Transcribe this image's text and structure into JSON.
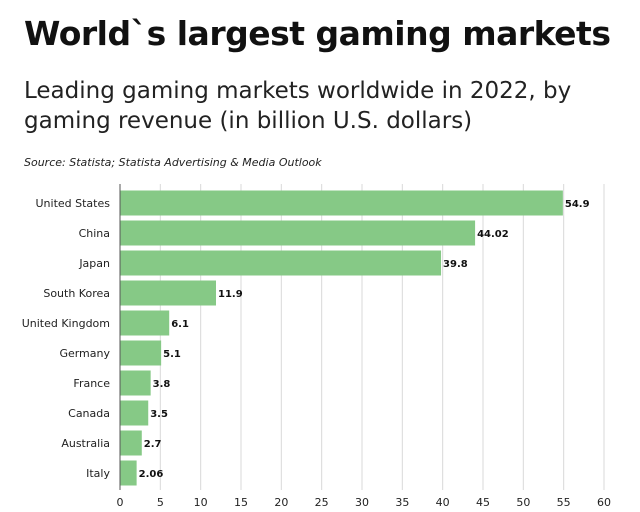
{
  "header": {
    "title": "World`s largest gaming markets",
    "subtitle": "Leading gaming markets worldwide in 2022, by gaming revenue (in billion U.S. dollars)",
    "source": "Source: Statista; Statista Advertising & Media Outlook"
  },
  "chart_data": {
    "type": "bar",
    "orientation": "horizontal",
    "categories": [
      "United States",
      "China",
      "Japan",
      "South Korea",
      "United Kingdom",
      "Germany",
      "France",
      "Canada",
      "Australia",
      "Italy"
    ],
    "values": [
      54.9,
      44.02,
      39.8,
      11.9,
      6.1,
      5.1,
      3.8,
      3.5,
      2.7,
      2.06
    ],
    "value_labels": [
      "54.9",
      "44.02",
      "39.8",
      "11.9",
      "6.1",
      "5.1",
      "3.8",
      "3.5",
      "2.7",
      "2.06"
    ],
    "x_ticks": [
      0,
      5,
      10,
      15,
      20,
      25,
      30,
      35,
      40,
      45,
      50,
      55,
      60
    ],
    "xlim": [
      0,
      60
    ],
    "grid": true,
    "bar_color": "#86c986",
    "xlabel": "",
    "ylabel": ""
  }
}
